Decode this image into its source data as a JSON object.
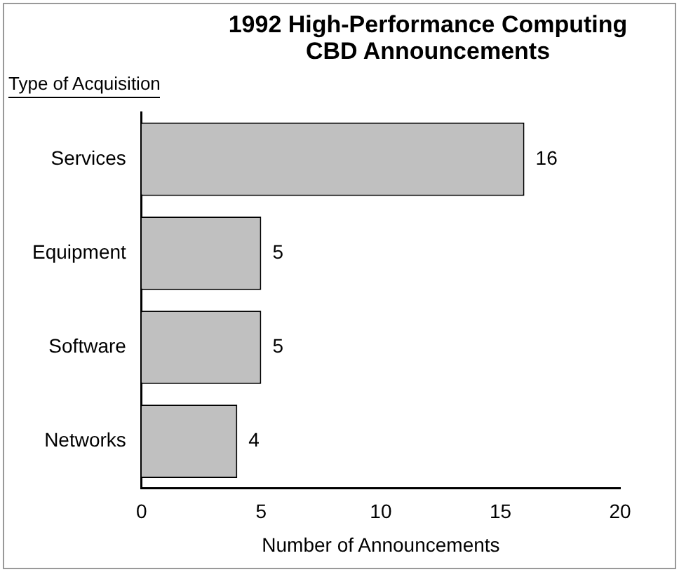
{
  "chart_data": {
    "type": "bar",
    "orientation": "horizontal",
    "title": "1992 High-Performance Computing CBD Announcements",
    "ylabel": "Type of Acquisition",
    "xlabel": "Number of Announcements",
    "categories": [
      "Services",
      "Equipment",
      "Software",
      "Networks"
    ],
    "values": [
      16,
      5,
      5,
      4
    ],
    "color": "#c0c0c0",
    "xlim": [
      0,
      20
    ],
    "xticks": [
      0,
      5,
      10,
      15,
      20
    ],
    "data_labels": true,
    "grid": false,
    "legend": false
  }
}
